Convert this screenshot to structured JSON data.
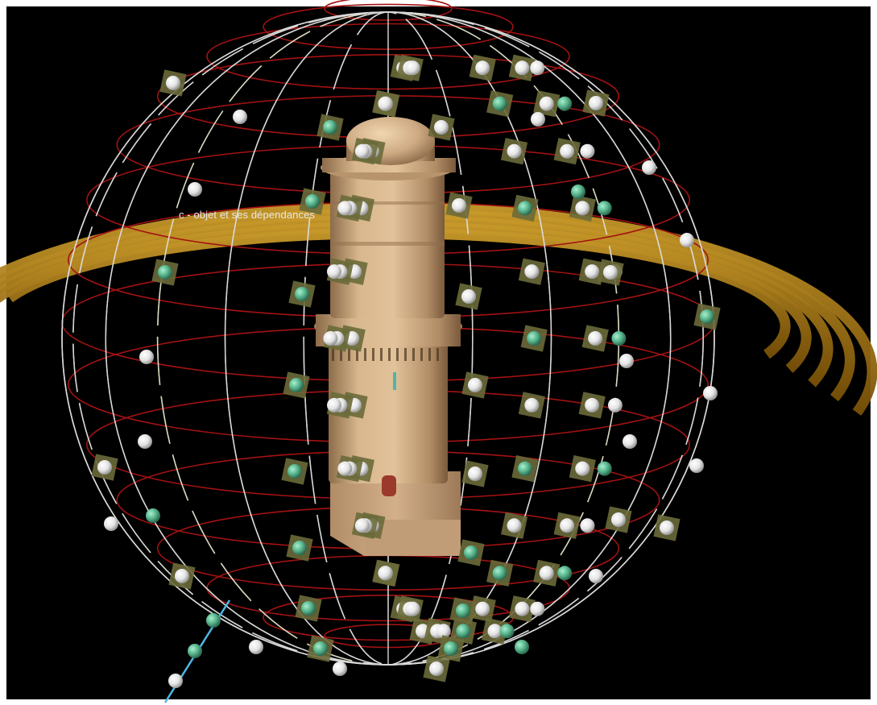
{
  "caption": "c - objet et ses dépendances",
  "colors": {
    "background": "#000000",
    "frame": "#ffffff",
    "meridian": "#d9d9d9",
    "highlight_meridian": "#e6e34a",
    "parallel": "#a31212",
    "orbit_band": "#b07a12",
    "tower_stone": "#c9a77c",
    "camera_marker_white": "#f2f2f2",
    "camera_marker_green": "#58b58c",
    "marker_panel": "#6a6a3a",
    "axis_line": "#4fb6e6"
  },
  "icons": [
    "camera-marker-icon",
    "green-camera-marker-icon"
  ]
}
